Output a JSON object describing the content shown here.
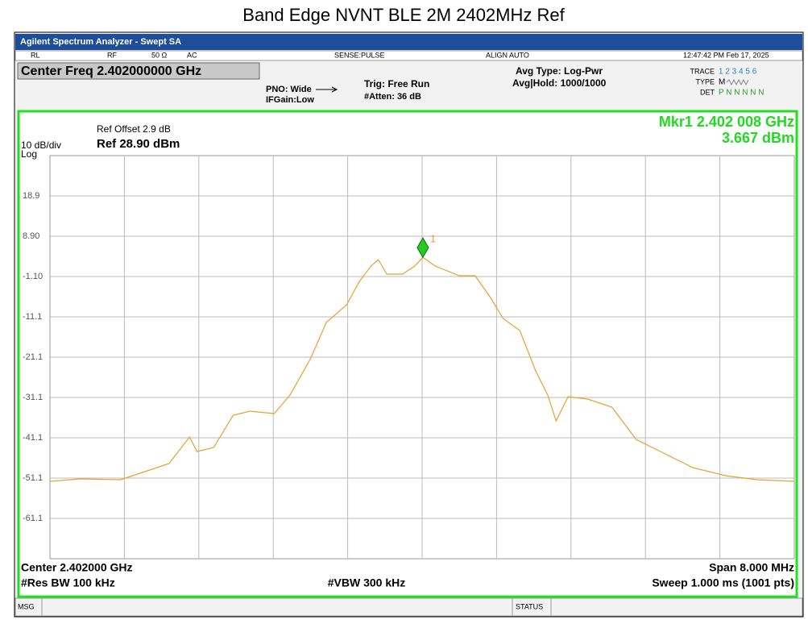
{
  "title": "Band Edge NVNT BLE 2M 2402MHz Ref",
  "screen": {
    "app_title": "Agilent Spectrum Analyzer - Swept SA",
    "status_row": [
      "RL",
      "RF",
      "50 Ω",
      "AC",
      "SENSE:PULSE",
      "ALIGN AUTO",
      "12:47:42 PM Feb 17, 2025"
    ],
    "center_freq": "Center Freq 2.402000000 GHz",
    "pno": "PNO: Wide",
    "ifgain": "IFGain:Low",
    "trig": "Trig: Free Run",
    "atten": "#Atten: 36 dB",
    "avg_type": "Avg Type: Log-Pwr",
    "avg_hold": "Avg|Hold: 1000/1000",
    "trace_label": "TRACE",
    "trace_nums": "1 2 3 4 5 6",
    "type_label": "TYPE",
    "type_value": "M",
    "det_label": "DET",
    "det_value": "P N N N N N",
    "ref_offset": "Ref Offset 2.9 dB",
    "scale": "10 dB/div",
    "ref_level": "Ref 28.90 dBm",
    "log": "Log",
    "marker_freq": "Mkr1 2.402 008 GHz",
    "marker_level": "3.667 dBm",
    "center": "Center 2.402000 GHz",
    "res_bw": "#Res BW 100 kHz",
    "vbw": "#VBW 300 kHz",
    "span": "Span 8.000 MHz",
    "sweep": "Sweep  1.000 ms (1001 pts)",
    "msg": "MSG",
    "status": "STATUS"
  },
  "chart_data": {
    "type": "line",
    "color": "#e8a030",
    "x": [
      2.398,
      2.39833,
      2.39876,
      2.39902,
      2.39928,
      2.3995,
      2.39958,
      2.39976,
      2.39997,
      2.40015,
      2.40041,
      2.40058,
      2.4008,
      2.40097,
      2.40119,
      2.40132,
      2.40145,
      2.40153,
      2.40162,
      2.40179,
      2.40192,
      2.402008,
      2.40214,
      2.4024,
      2.40257,
      2.40274,
      2.40287,
      2.40305,
      2.40322,
      2.40335,
      2.40344,
      2.40357,
      2.40378,
      2.40404,
      2.4043,
      2.40456,
      2.40491,
      2.40526,
      2.4056,
      2.406
    ],
    "values": [
      -51.9,
      -51.3,
      -51.5,
      -49.5,
      -47.5,
      -40.9,
      -44.5,
      -43.5,
      -35.5,
      -34.5,
      -35.1,
      -30.5,
      -21.5,
      -12.5,
      -8.1,
      -2.5,
      1.5,
      3.1,
      -0.5,
      -0.5,
      1.5,
      3.667,
      1.5,
      -0.9,
      -0.9,
      -6.5,
      -11.5,
      -14.5,
      -24.5,
      -30.5,
      -36.9,
      -30.9,
      -31.5,
      -33.5,
      -41.5,
      -44.5,
      -48.5,
      -50.5,
      -51.5,
      -51.9
    ],
    "xlim": [
      2.398,
      2.406
    ],
    "ylim": [
      -71.1,
      28.9
    ],
    "yticks": [
      18.9,
      {
        "value": 8.9,
        "label": "8.90"
      },
      {
        "value": -1.1,
        "label": "-1.10"
      },
      -11.1,
      -21.1,
      -31.1,
      -41.1,
      -51.1,
      -61.1
    ],
    "grid": true,
    "marker": {
      "label": "1",
      "x": 2.402008,
      "value": 3.667,
      "color": "#22cc22"
    }
  }
}
